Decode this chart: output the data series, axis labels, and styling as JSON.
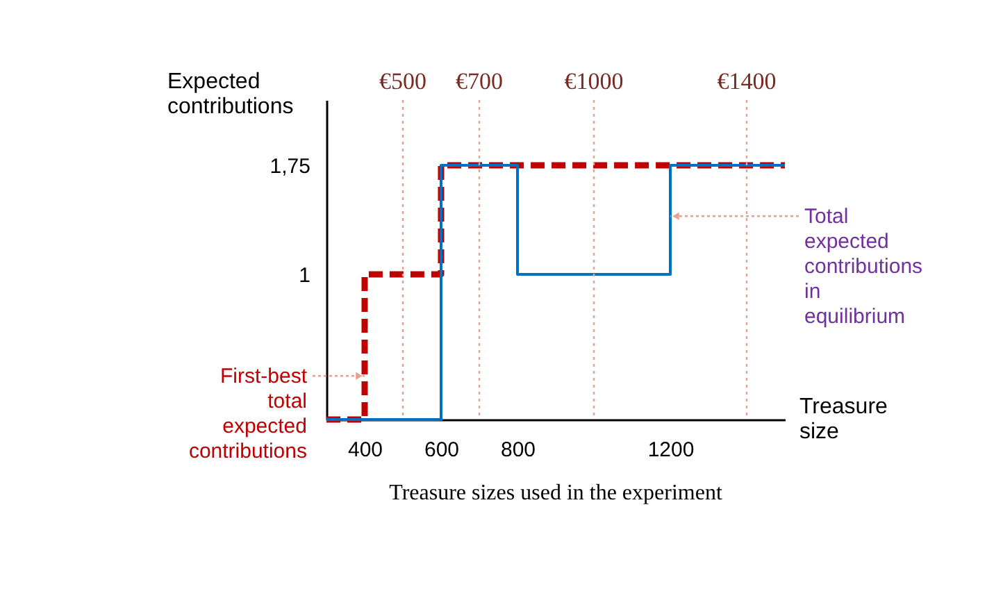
{
  "chart_data": {
    "type": "step",
    "xlabel": "Treasure size",
    "ylabel": "Expected contributions",
    "xlim": [
      300,
      1500
    ],
    "xticks": [
      400,
      600,
      800,
      1200
    ],
    "ylim": [
      0,
      2.2
    ],
    "yticks": [
      {
        "value": 1,
        "label": "1"
      },
      {
        "value": 1.75,
        "label": "1,75"
      }
    ],
    "series": [
      {
        "color": "#c00000",
        "line_style": "dashed",
        "x": [
          300,
          400,
          600,
          1500
        ],
        "values": [
          0,
          1,
          1.75,
          1.75
        ]
      },
      {
        "color": "#0070c0",
        "line_style": "solid",
        "x": [
          300,
          600,
          800,
          1200,
          1500
        ],
        "values": [
          0,
          1.75,
          1,
          1.75,
          1.75
        ]
      }
    ],
    "ref_lines": [
      {
        "axis": "x",
        "value": 500,
        "label": "€500",
        "color": "#e8a090",
        "line_style": "dotted"
      },
      {
        "axis": "x",
        "value": 700,
        "label": "€700",
        "color": "#e8a090",
        "line_style": "dotted"
      },
      {
        "axis": "x",
        "value": 1000,
        "label": "€1000",
        "color": "#e8a090",
        "line_style": "dotted"
      },
      {
        "axis": "x",
        "value": 1400,
        "label": "€1400",
        "color": "#e8a090",
        "line_style": "dotted"
      }
    ],
    "annotations": [
      {
        "text": "First-best total expected contributions",
        "x": 400,
        "y": 0.3
      },
      {
        "text": "Total expected contributions in equilibrium",
        "x": 1200,
        "y": 1.4
      },
      "Treasure sizes used in the experiment"
    ],
    "grid": false,
    "marker": "none"
  }
}
